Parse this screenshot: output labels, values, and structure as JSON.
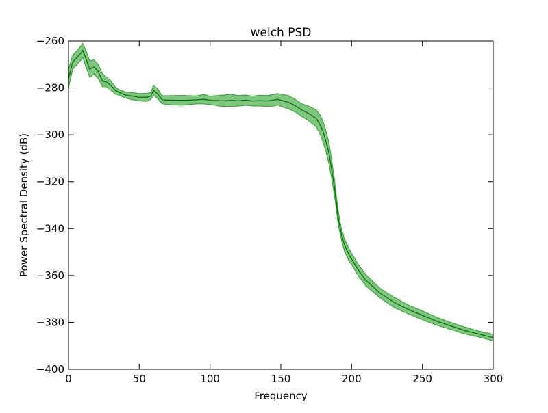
{
  "chart_data": {
    "type": "area",
    "title": "welch PSD",
    "xlabel": "Frequency",
    "ylabel": "Power Spectral Density (dB)",
    "xlim": [
      0,
      300
    ],
    "ylim": [
      -400,
      -260
    ],
    "xticks": [
      0,
      50,
      100,
      150,
      200,
      250,
      300
    ],
    "yticks": [
      -260,
      -280,
      -300,
      -320,
      -340,
      -360,
      -380,
      -400
    ],
    "xtick_labels": [
      "0",
      "50",
      "100",
      "150",
      "200",
      "250",
      "300"
    ],
    "ytick_labels": [
      "−260",
      "−280",
      "−300",
      "−320",
      "−340",
      "−360",
      "−380",
      "−400"
    ],
    "grid": false,
    "legend": false,
    "colors": {
      "line": "#006400",
      "band": "#2ca02c",
      "band_opacity": 0.6
    },
    "x": [
      0,
      3,
      6,
      9,
      10,
      12,
      15,
      18,
      21,
      24,
      27,
      30,
      33,
      36,
      40,
      45,
      50,
      55,
      58,
      60,
      63,
      66,
      70,
      80,
      90,
      96,
      100,
      110,
      115,
      120,
      125,
      130,
      135,
      140,
      145,
      148,
      150,
      155,
      160,
      165,
      170,
      175,
      178,
      180,
      182,
      184,
      186,
      188,
      189,
      190,
      191,
      192,
      193,
      195,
      198,
      200,
      205,
      210,
      220,
      230,
      240,
      250,
      260,
      270,
      280,
      290,
      300
    ],
    "mean": [
      -276,
      -269,
      -267,
      -265,
      -264,
      -267,
      -272,
      -271,
      -273,
      -277,
      -277.5,
      -279,
      -281,
      -282,
      -283,
      -283.5,
      -284,
      -284,
      -283.5,
      -281,
      -282.5,
      -285,
      -285.2,
      -285.3,
      -285.1,
      -284.8,
      -285.3,
      -285.5,
      -285.3,
      -285.5,
      -285.2,
      -285.6,
      -285.4,
      -285.6,
      -285.2,
      -284.8,
      -285.3,
      -286,
      -287.5,
      -289.5,
      -291,
      -293,
      -296,
      -299,
      -303,
      -308,
      -315,
      -323,
      -328,
      -333,
      -337,
      -340,
      -343,
      -347,
      -351,
      -353,
      -358,
      -362,
      -367.5,
      -371.5,
      -374.5,
      -377,
      -379.5,
      -381.5,
      -383.5,
      -385,
      -386.5
    ],
    "upper": [
      -272,
      -266,
      -264,
      -262,
      -261,
      -263.5,
      -268.5,
      -268,
      -270,
      -274,
      -275.5,
      -277,
      -279.5,
      -280.8,
      -281.7,
      -282,
      -282.4,
      -282.3,
      -282,
      -279,
      -280.3,
      -283.3,
      -283.3,
      -283.2,
      -283.4,
      -282.8,
      -283.5,
      -283,
      -282.7,
      -283.3,
      -283,
      -283.5,
      -283.1,
      -283.3,
      -282.7,
      -282.4,
      -282.7,
      -283.2,
      -284.8,
      -286.8,
      -287.8,
      -289.4,
      -291.8,
      -294.5,
      -298.5,
      -303.5,
      -311,
      -319.5,
      -325,
      -330,
      -334,
      -337.5,
      -340.5,
      -344.3,
      -348.3,
      -350.6,
      -355.5,
      -359.6,
      -365.4,
      -369.3,
      -372.6,
      -375.1,
      -377.8,
      -380,
      -382,
      -383.7,
      -385.1
    ],
    "lower": [
      -280,
      -272,
      -270,
      -268,
      -267,
      -270.5,
      -275.5,
      -274,
      -276,
      -279.5,
      -279.5,
      -281,
      -282.5,
      -283.2,
      -284.3,
      -285,
      -285.6,
      -285.7,
      -285,
      -283,
      -284.7,
      -286.7,
      -287.1,
      -287.4,
      -286.8,
      -286.8,
      -287.1,
      -288,
      -287.9,
      -287.7,
      -287.4,
      -287.7,
      -287.7,
      -287.9,
      -287.7,
      -287.2,
      -287.9,
      -288.8,
      -290.2,
      -292.2,
      -294.2,
      -296.6,
      -300.2,
      -303.5,
      -307.5,
      -312.5,
      -319,
      -326.5,
      -331,
      -336,
      -340,
      -342.5,
      -345.5,
      -349.7,
      -353.7,
      -355.4,
      -360.5,
      -364.4,
      -369.6,
      -373.7,
      -376.4,
      -378.9,
      -381.2,
      -383,
      -385,
      -386.3,
      -387.9
    ]
  }
}
